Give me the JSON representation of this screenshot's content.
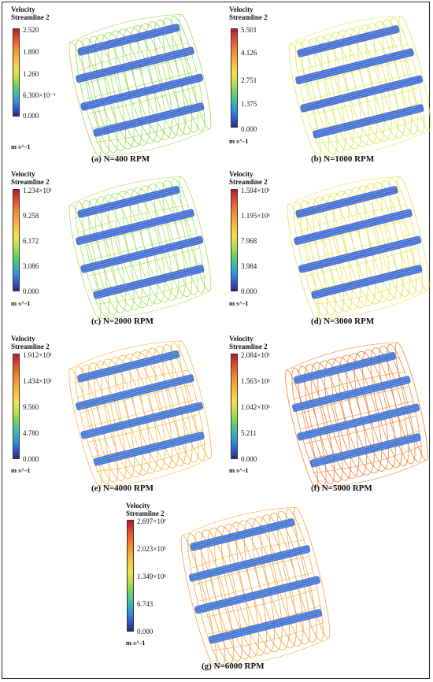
{
  "legend": {
    "title_line1": "Velocity",
    "title_line2": "Streamline 2",
    "unit": "m s^-1"
  },
  "panels": [
    {
      "id": "a",
      "caption": "(a) N=400 RPM",
      "ticks": [
        "2.520",
        "1.890",
        "1.260",
        "6.300×10⁻¹",
        "0.000"
      ],
      "flow_color": "#8fdc4a",
      "cage_color": "#3b5fd0"
    },
    {
      "id": "b",
      "caption": "(b) N=1000 RPM",
      "ticks": [
        "5.501",
        "4.126",
        "2.751",
        "1.375",
        "0.000"
      ],
      "flow_color": "#d9e64a",
      "cage_color": "#3b5fd0"
    },
    {
      "id": "c",
      "caption": "(c) N=2000 RPM",
      "ticks": [
        "1.234×10¹",
        "9.258",
        "6.172",
        "3.086",
        "0.000"
      ],
      "flow_color": "#9ee24f",
      "cage_color": "#3b5fd0"
    },
    {
      "id": "d",
      "caption": "(d) N=3000 RPM",
      "ticks": [
        "1.594×10¹",
        "1.195×10¹",
        "7.968",
        "3.984",
        "0.000"
      ],
      "flow_color": "#e2e244",
      "cage_color": "#3b5fd0"
    },
    {
      "id": "e",
      "caption": "(e) N=4000 RPM",
      "ticks": [
        "1.912×10¹",
        "1.434×10¹",
        "9.560",
        "4.780",
        "0.000"
      ],
      "flow_color": "#f3b23a",
      "cage_color": "#3b6ad0"
    },
    {
      "id": "f",
      "caption": "(f) N=5000 RPM",
      "ticks": [
        "2.084×10¹",
        "1.563×10¹",
        "1.042×10¹",
        "5.211",
        "0.000"
      ],
      "flow_color": "#ee7a2c",
      "cage_color": "#3b6ad0"
    },
    {
      "id": "g",
      "caption": "(g) N=6000 RPM",
      "ticks": [
        "2.697×10¹",
        "2.023×10¹",
        "1.349×10¹",
        "6.743",
        "0.000"
      ],
      "flow_color": "#f1a035",
      "cage_color": "#3b6ad0"
    }
  ]
}
